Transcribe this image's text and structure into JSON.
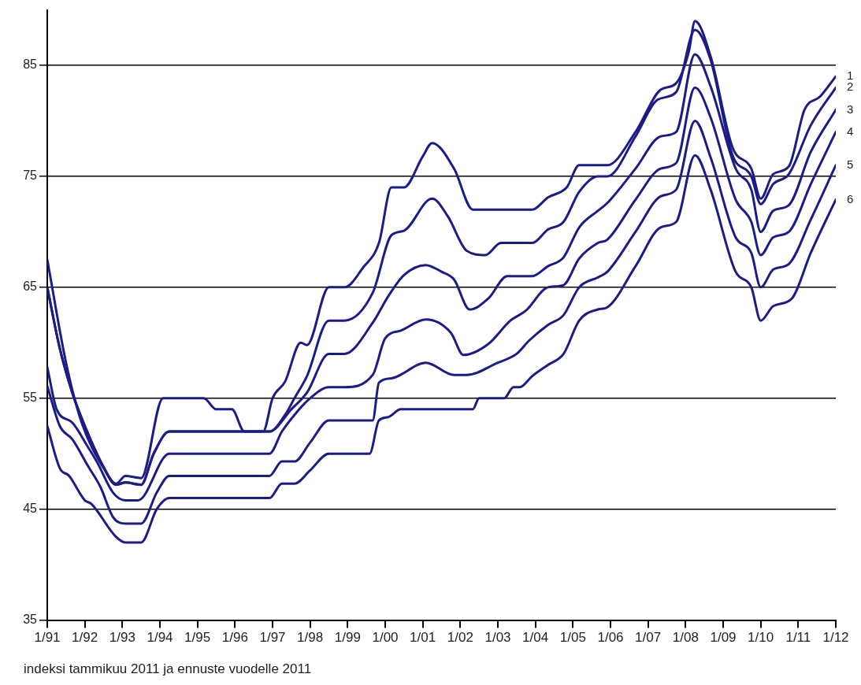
{
  "chart_data": {
    "type": "line",
    "annotations": [
      "indeksi tammikuu 2011 ja ennuste vuodelle 2011"
    ],
    "xlim": [
      "1991-01",
      "2012-01"
    ],
    "xticks": [
      {
        "value": "1991-01",
        "label": "1/91"
      },
      {
        "value": "1992-01",
        "label": "1/92"
      },
      {
        "value": "1993-01",
        "label": "1/93"
      },
      {
        "value": "1994-01",
        "label": "1/94"
      },
      {
        "value": "1995-01",
        "label": "1/95"
      },
      {
        "value": "1996-01",
        "label": "1/96"
      },
      {
        "value": "1997-01",
        "label": "1/97"
      },
      {
        "value": "1998-01",
        "label": "1/98"
      },
      {
        "value": "1999-01",
        "label": "1/99"
      },
      {
        "value": "2000-01",
        "label": "1/00"
      },
      {
        "value": "2001-01",
        "label": "1/01"
      },
      {
        "value": "2002-01",
        "label": "1/02"
      },
      {
        "value": "2003-01",
        "label": "1/03"
      },
      {
        "value": "2004-01",
        "label": "1/04"
      },
      {
        "value": "2005-01",
        "label": "1/05"
      },
      {
        "value": "2006-01",
        "label": "1/06"
      },
      {
        "value": "2007-01",
        "label": "1/07"
      },
      {
        "value": "2008-01",
        "label": "1/08"
      },
      {
        "value": "2009-01",
        "label": "1/09"
      },
      {
        "value": "2010-01",
        "label": "1/10"
      },
      {
        "value": "2011-01",
        "label": "1/11"
      },
      {
        "value": "2012-01",
        "label": "1/12"
      }
    ],
    "ylim": [
      35,
      90
    ],
    "yticks": [
      35,
      45,
      55,
      65,
      75,
      85
    ],
    "grid": "y",
    "legend": false,
    "marker": "none",
    "line_style": "solid",
    "series": [
      {
        "name": "1",
        "color": "#1c1c87",
        "x": [
          "1991-01",
          "1991-07",
          "1991-12",
          "1992-07",
          "1992-11",
          "1993-02",
          "1993-07",
          "1994-02",
          "1995-03",
          "1995-07",
          "1995-12",
          "1996-04",
          "1996-10",
          "1997-01",
          "1997-05",
          "1997-10",
          "1997-12",
          "1998-07",
          "1998-12",
          "1999-06",
          "1999-11",
          "2000-03",
          "2000-07",
          "2001-01",
          "2001-04",
          "2001-11",
          "2002-05",
          "2003-12",
          "2004-05",
          "2004-11",
          "2005-03",
          "2005-12",
          "2006-09",
          "2007-05",
          "2007-10",
          "2008-02",
          "2008-04",
          "2008-09",
          "2009-04",
          "2009-10",
          "2010-01",
          "2010-05",
          "2010-10",
          "2011-03",
          "2011-08",
          "2012-01"
        ],
        "values": [
          67.5,
          58.2,
          52.8,
          48.7,
          47.3,
          48,
          47.8,
          55,
          55,
          54,
          54,
          52,
          52,
          55,
          56.5,
          60,
          59.8,
          65,
          65,
          66.8,
          69,
          74,
          74,
          76.8,
          78,
          75.7,
          72,
          72,
          73.1,
          74,
          76,
          76,
          79,
          82.8,
          83.4,
          86.2,
          89,
          85.8,
          77.6,
          75.7,
          73,
          75.2,
          75.9,
          81,
          82.2,
          84
        ]
      },
      {
        "name": "2",
        "color": "#1c1c87",
        "x": [
          "1991-01",
          "1991-05",
          "1991-09",
          "1992-01",
          "1992-07",
          "1992-11",
          "1993-02",
          "1993-07",
          "1993-11",
          "1994-04",
          "1996-12",
          "1997-05",
          "1997-08",
          "1997-12",
          "1998-07",
          "1998-12",
          "1999-09",
          "2000-03",
          "2000-07",
          "2001-04",
          "2001-09",
          "2002-03",
          "2002-09",
          "2003-02",
          "2003-12",
          "2004-05",
          "2004-10",
          "2005-03",
          "2005-09",
          "2005-12",
          "2006-09",
          "2007-04",
          "2007-10",
          "2008-04",
          "2008-09",
          "2009-04",
          "2009-10",
          "2010-01",
          "2010-05",
          "2010-10",
          "2011-05",
          "2012-01"
        ],
        "values": [
          65,
          59.5,
          55.5,
          52.5,
          48.8,
          47.2,
          47.4,
          47.2,
          50,
          52,
          52,
          53.5,
          55,
          57,
          62,
          62,
          64.5,
          69.7,
          70.1,
          73,
          71.4,
          68.3,
          67.9,
          69,
          69,
          70.2,
          70.9,
          73.6,
          75,
          75,
          78.6,
          81.9,
          82.6,
          88.2,
          85.5,
          76.9,
          75,
          72.5,
          74.3,
          75.2,
          79.6,
          83
        ]
      },
      {
        "name": "3",
        "color": "#1c1c87",
        "x": [
          "1991-01",
          "1991-05",
          "1991-09",
          "1992-01",
          "1992-07",
          "1992-11",
          "1993-02",
          "1993-07",
          "1993-11",
          "1994-04",
          "1996-12",
          "1997-07",
          "1997-12",
          "1998-07",
          "1998-12",
          "1999-09",
          "2000-02",
          "2000-07",
          "2001-02",
          "2001-07",
          "2001-11",
          "2002-04",
          "2002-10",
          "2003-04",
          "2003-12",
          "2004-05",
          "2004-10",
          "2005-03",
          "2005-09",
          "2005-12",
          "2006-09",
          "2007-05",
          "2007-10",
          "2008-04",
          "2008-09",
          "2009-05",
          "2009-10",
          "2010-01",
          "2010-05",
          "2010-10",
          "2011-05",
          "2012-01"
        ],
        "values": [
          65,
          59.5,
          55.5,
          52.5,
          48.8,
          47.2,
          47.4,
          47.2,
          50,
          52,
          52,
          54,
          55.5,
          59,
          59,
          61.8,
          64.2,
          66.1,
          67,
          66.4,
          65.7,
          63,
          64,
          66,
          66,
          66.9,
          67.7,
          70.4,
          71.9,
          72.6,
          75.7,
          78.6,
          79,
          86,
          83.1,
          75.7,
          73.8,
          70,
          71.9,
          72.4,
          77.2,
          81
        ]
      },
      {
        "name": "4",
        "color": "#1c1c87",
        "x": [
          "1991-01",
          "1991-04",
          "1991-09",
          "1992-02",
          "1992-05",
          "1992-10",
          "1993-02",
          "1993-06",
          "1994-04",
          "1996-12",
          "1997-04",
          "1997-08",
          "1998-01",
          "1998-07",
          "1998-12",
          "1999-09",
          "2000-01",
          "2000-06",
          "2001-02",
          "2001-10",
          "2002-02",
          "2002-10",
          "2003-05",
          "2003-10",
          "2004-05",
          "2004-10",
          "2005-03",
          "2005-09",
          "2005-12",
          "2006-09",
          "2007-05",
          "2007-10",
          "2008-04",
          "2008-09",
          "2009-05",
          "2009-10",
          "2010-01",
          "2010-05",
          "2010-10",
          "2011-05",
          "2012-01"
        ],
        "values": [
          57.8,
          54,
          52.8,
          50.6,
          49.2,
          46.5,
          45.8,
          45.8,
          50,
          50,
          52,
          53.5,
          55,
          56,
          56,
          57.1,
          60.4,
          61.1,
          62.1,
          60.9,
          58.9,
          59.9,
          62,
          62.9,
          65,
          65.2,
          67.6,
          69,
          69.3,
          72.9,
          75.7,
          76.2,
          83,
          80.3,
          72.9,
          70.9,
          67.9,
          69.5,
          70,
          74.3,
          79
        ]
      },
      {
        "name": "5",
        "color": "#1c1c87",
        "x": [
          "1991-01",
          "1991-05",
          "1991-09",
          "1992-02",
          "1992-06",
          "1992-10",
          "1993-02",
          "1993-07",
          "1993-12",
          "1994-04",
          "1996-12",
          "1997-04",
          "1997-08",
          "1998-01",
          "1998-07",
          "1999-09",
          "1999-11",
          "2000-03",
          "2001-02",
          "2001-11",
          "2002-03",
          "2003-01",
          "2003-07",
          "2003-11",
          "2004-05",
          "2004-10",
          "2005-03",
          "2005-09",
          "2005-12",
          "2006-09",
          "2007-05",
          "2007-10",
          "2008-04",
          "2008-09",
          "2009-05",
          "2009-10",
          "2010-01",
          "2010-05",
          "2010-10",
          "2011-05",
          "2012-01"
        ],
        "values": [
          56.1,
          52.5,
          51.3,
          48.9,
          47,
          44.3,
          43.7,
          43.7,
          46.5,
          48,
          48,
          49.3,
          49.3,
          51,
          53,
          53,
          56.4,
          56.8,
          58.2,
          57.1,
          57.1,
          58.2,
          59,
          60.2,
          61.6,
          62.5,
          65,
          65.9,
          66.4,
          70,
          73.2,
          73.8,
          80,
          76.7,
          69.5,
          68.1,
          65,
          66.6,
          67.1,
          71.1,
          76
        ]
      },
      {
        "name": "6",
        "color": "#1c1c87",
        "x": [
          "1991-01",
          "1991-05",
          "1991-08",
          "1992-01",
          "1992-03",
          "1992-11",
          "1993-02",
          "1993-07",
          "1993-12",
          "1994-04",
          "1996-12",
          "1997-04",
          "1997-08",
          "1998-01",
          "1998-07",
          "1999-08",
          "1999-11",
          "2000-02",
          "2000-06",
          "2002-05",
          "2002-07",
          "2003-03",
          "2003-06",
          "2003-08",
          "2003-12",
          "2004-05",
          "2004-10",
          "2005-03",
          "2005-09",
          "2005-12",
          "2006-09",
          "2007-05",
          "2007-10",
          "2008-04",
          "2008-09",
          "2009-05",
          "2009-10",
          "2010-01",
          "2010-05",
          "2010-11",
          "2011-05",
          "2012-01"
        ],
        "values": [
          52.5,
          48.7,
          48,
          45.8,
          45.5,
          42.5,
          42,
          42,
          45,
          46,
          46,
          47.3,
          47.3,
          48.5,
          50,
          50,
          53,
          53.3,
          54,
          54,
          55,
          55,
          56,
          56,
          57,
          58,
          59,
          62,
          63,
          63.2,
          66.9,
          70.4,
          70.9,
          76.9,
          73.8,
          66.4,
          65,
          62,
          63.3,
          64,
          68.1,
          72.9
        ]
      }
    ]
  }
}
